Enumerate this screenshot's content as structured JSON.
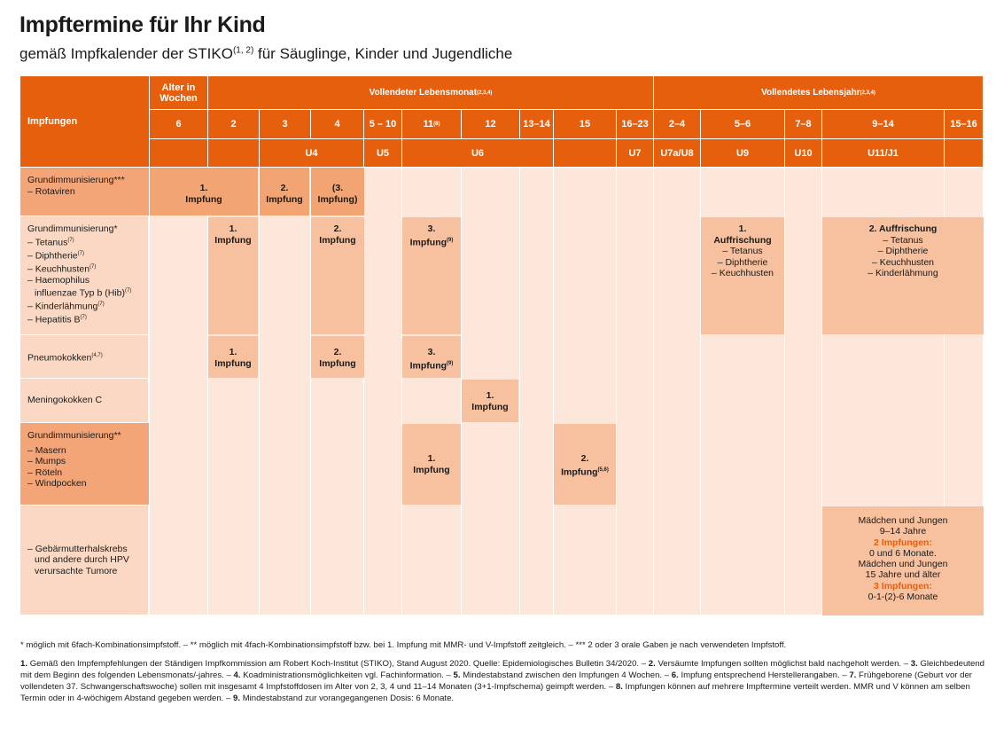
{
  "title": "Impftermine für Ihr Kind",
  "subtitle": "gemäß Impfkalender der STIKO",
  "subtitle_sup": "(1, 2)",
  "subtitle_rest": " für Säuglinge, Kinder und Jugendliche",
  "header": {
    "impfungen": "Impfungen",
    "alter_wochen": "Alter in Wochen",
    "lebensmonat": "Vollendeter Lebensmonat",
    "lebensmonat_sup": "(2,3,4)",
    "lebensjahr": "Vollendetes Lebensjahr",
    "lebensjahr_sup": "(2,3,4)",
    "ages": [
      "6",
      "2",
      "3",
      "4",
      "5 – 10",
      "11",
      "12",
      "13–14",
      "15",
      "16–23",
      "2–4",
      "5–6",
      "7–8",
      "9–14",
      "15–16"
    ],
    "age_11_sup": "(8)",
    "u_exams": [
      "U4",
      "U5",
      "U6",
      "U7",
      "U7a/U8",
      "U9",
      "U10",
      "U11/J1"
    ]
  },
  "rows": {
    "rota": {
      "main": "Grundimmunisierung***",
      "sub": "– Rotaviren"
    },
    "six": {
      "main": "Grundimmunisierung*",
      "items": [
        "– Tetanus",
        "– Diphtherie",
        "– Keuchhusten",
        "– Haemophilus",
        "influenzae Typ b (Hib)",
        "– Kinderlähmung",
        "– Hepatitis B"
      ],
      "sup": "(7)"
    },
    "pneumo": {
      "main": "Pneumokokken",
      "sup": "(4,7)"
    },
    "menc": {
      "main": "Meningokokken C"
    },
    "mmrv": {
      "main": "Grundimmunisierung**",
      "items": [
        "– Masern",
        "– Mumps",
        "– Röteln",
        "– Windpocken"
      ]
    },
    "hpv": {
      "items": [
        "– Gebärmutterhalskrebs",
        "und andere durch HPV",
        "verursachte Tumore"
      ]
    }
  },
  "boxes": {
    "impfung1": "1. Impfung",
    "impfung2": "2. Impfung",
    "impfung3_open": "(3.",
    "impfung3_close": "Impfung)",
    "n1": "1.",
    "n2": "2.",
    "n3": "3.",
    "impfung": "Impfung",
    "sup9": "(9)",
    "sup56": "(5,6)",
    "auffrischung": "Auffrischung",
    "auffr1_items": [
      "– Tetanus",
      "– Diphtherie",
      "– Keuchhusten"
    ],
    "auffr2_title": "2. Auffrischung",
    "auffr2_items": [
      "– Tetanus",
      "– Diphtherie",
      "– Keuchhusten",
      "– Kinderlähmung"
    ],
    "hpv_lines": [
      "Mädchen und Jungen",
      "9–14 Jahre",
      "2 Impfungen:",
      "0 und 6 Monate.",
      "Mädchen und Jungen",
      "15 Jahre und älter",
      "3 Impfungen:",
      "0-1-(2)-6 Monate"
    ]
  },
  "footnotes": {
    "stars": "* möglich mit 6fach-Kombinationsimpfstoff.  –  ** möglich mit 4fach-Kombinationsimpfstoff bzw. bei 1. Impfung mit MMR- und V-Impfstoff zeitgleich.  –  *** 2 oder 3 orale Gaben je nach verwendeten Impfstoff.",
    "numbered_1": "Gemäß den Impfempfehlungen der Ständigen Impfkommission am Robert Koch-Institut (STIKO), Stand August 2020. Quelle: Epidemiologisches Bulletin 34/2020.  –  ",
    "numbered_2": "Versäumte Impfungen sollten möglichst bald nachgeholt werden.  –  ",
    "numbered_3": "Gleichbedeutend mit dem Beginn des folgenden Lebensmonats/-jahres.  –  ",
    "numbered_4": "Koadministrationsmöglichkeiten vgl. Fachinformation.  –  ",
    "numbered_5": "Mindestabstand zwischen den Impfungen 4 Wochen.  –  ",
    "numbered_6": "Impfung entsprechend Herstellerangaben.  –  ",
    "numbered_7": "Frühgeborene (Geburt vor der vollendeten 37. Schwangerschaftswoche) sollen mit insgesamt 4 Impfstoffdosen im Alter von 2, 3, 4 und 11–14 Monaten (3+1-Impfschema) geimpft werden.  –  ",
    "numbered_8": "Impfungen können auf mehrere Impftermine verteilt werden. MMR und V können am selben Termin oder in 4-wöchigem Abstand gegeben werden.  –  ",
    "numbered_9": "Mindestabstand zur vorangegangenen Dosis: 6 Monate.",
    "labels": [
      "1.",
      "2.",
      "3.",
      "4.",
      "5.",
      "6.",
      "7.",
      "8.",
      "9."
    ]
  }
}
